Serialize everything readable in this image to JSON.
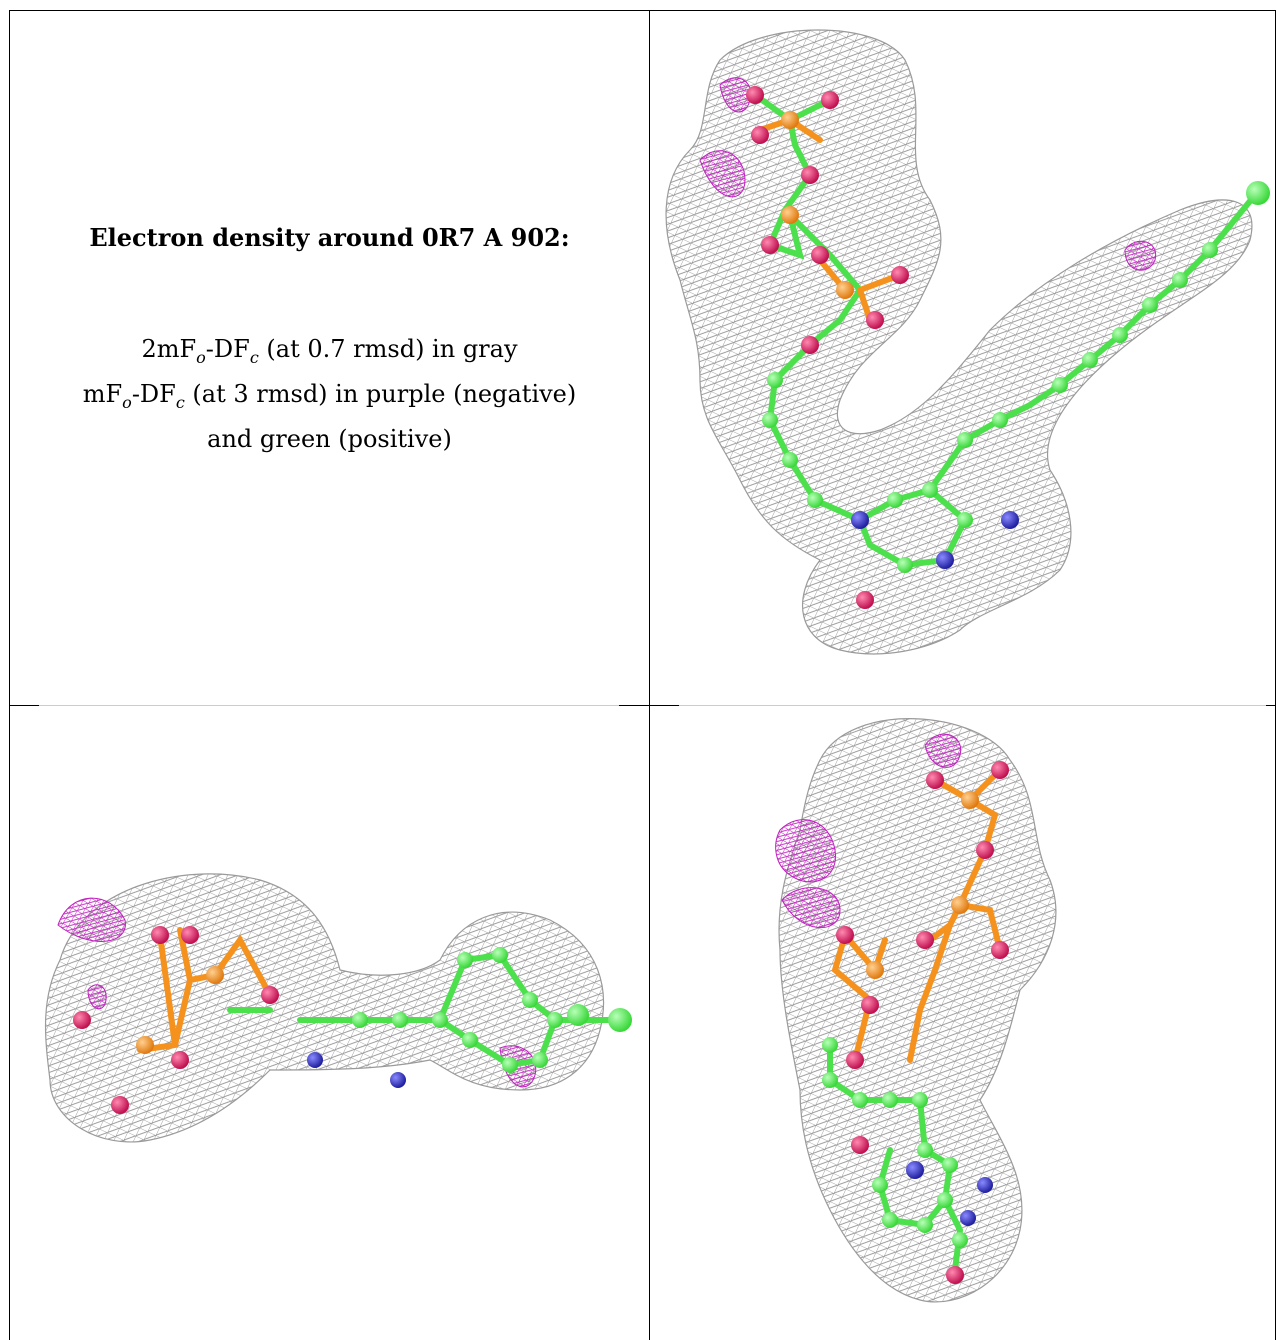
{
  "heading": "Electron density around 0R7 A 902:",
  "legend": {
    "line1": {
      "pre": "2mF",
      "s1": "o",
      "mid": "-DF",
      "s2": "c",
      "post": " (at 0.7 rmsd) in gray"
    },
    "line2": {
      "pre": "mF",
      "s1": "o",
      "mid": "-DF",
      "s2": "c",
      "post": " (at 3 rmsd) in purple (negative)"
    },
    "line3": "and green (positive)"
  },
  "colors": {
    "mesh": "#9a9a9a",
    "carbon": "#4cf04c",
    "oxygen": "#e0286a",
    "phosphorus": "#f5921e",
    "nitrogen": "#3a3ad0",
    "negative_density": "#c020c0"
  },
  "views": [
    "view-top-right",
    "view-bottom-left",
    "view-bottom-right"
  ]
}
